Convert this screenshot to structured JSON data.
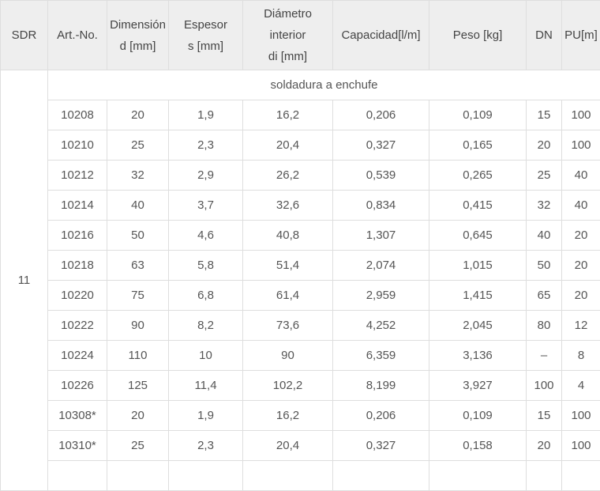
{
  "table": {
    "headers": [
      {
        "key": "sdr",
        "lines": [
          "SDR"
        ]
      },
      {
        "key": "art_no",
        "lines": [
          "Art.-No."
        ]
      },
      {
        "key": "dimension",
        "lines": [
          "Dimensión",
          "d [mm]"
        ]
      },
      {
        "key": "espesor",
        "lines": [
          "Espesor",
          "s [mm]"
        ]
      },
      {
        "key": "diametro",
        "lines": [
          "Diámetro",
          "interior",
          "di [mm]"
        ]
      },
      {
        "key": "capacidad",
        "lines": [
          "Capacidad[l/m]"
        ]
      },
      {
        "key": "peso",
        "lines": [
          "Peso [kg]"
        ]
      },
      {
        "key": "dn",
        "lines": [
          "DN"
        ]
      },
      {
        "key": "pu",
        "lines": [
          "PU[m]"
        ]
      }
    ],
    "sdr_value": "11",
    "section_label": "soldadura a enchufe",
    "rows": [
      [
        "10208",
        "20",
        "1,9",
        "16,2",
        "0,206",
        "0,109",
        "15",
        "100"
      ],
      [
        "10210",
        "25",
        "2,3",
        "20,4",
        "0,327",
        "0,165",
        "20",
        "100"
      ],
      [
        "10212",
        "32",
        "2,9",
        "26,2",
        "0,539",
        "0,265",
        "25",
        "40"
      ],
      [
        "10214",
        "40",
        "3,7",
        "32,6",
        "0,834",
        "0,415",
        "32",
        "40"
      ],
      [
        "10216",
        "50",
        "4,6",
        "40,8",
        "1,307",
        "0,645",
        "40",
        "20"
      ],
      [
        "10218",
        "63",
        "5,8",
        "51,4",
        "2,074",
        "1,015",
        "50",
        "20"
      ],
      [
        "10220",
        "75",
        "6,8",
        "61,4",
        "2,959",
        "1,415",
        "65",
        "20"
      ],
      [
        "10222",
        "90",
        "8,2",
        "73,6",
        "4,252",
        "2,045",
        "80",
        "12"
      ],
      [
        "10224",
        "110",
        "10",
        "90",
        "6,359",
        "3,136",
        "–",
        "8"
      ],
      [
        "10226",
        "125",
        "11,4",
        "102,2",
        "8,199",
        "3,927",
        "100",
        "4"
      ],
      [
        "10308*",
        "20",
        "1,9",
        "16,2",
        "0,206",
        "0,109",
        "15",
        "100"
      ],
      [
        "10310*",
        "25",
        "2,3",
        "20,4",
        "0,327",
        "0,158",
        "20",
        "100"
      ]
    ]
  }
}
